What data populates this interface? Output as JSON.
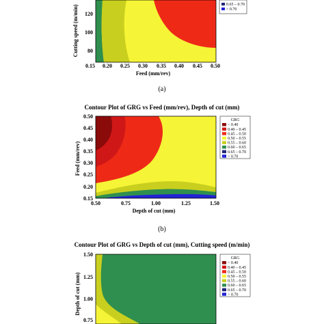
{
  "chart_data": [
    {
      "id": "a",
      "type": "contour",
      "title": "",
      "xlabel": "Feed (mm/rev)",
      "ylabel": "Cutting speed (m/min)",
      "x_ticks": [
        "0.15",
        "0.20",
        "0.25",
        "0.30",
        "0.35",
        "0.40",
        "0.45",
        "0.50"
      ],
      "y_ticks": [
        "120",
        "100",
        "80"
      ],
      "xlim": [
        0.15,
        0.5
      ],
      "ylim": [
        70,
        140
      ],
      "legend_partial": [
        "0.65 – 0.70",
        "> 0.70"
      ],
      "caption": "(a)"
    },
    {
      "id": "b",
      "type": "contour",
      "title": "Contour Plot of GRG vs Feed (mm/rev), Depth of cut (mm)",
      "xlabel": "Depth of cut (mm)",
      "ylabel": "Feed (mm/rev)",
      "x_ticks": [
        "0.50",
        "0.75",
        "1.00",
        "1.25",
        "1.50"
      ],
      "y_ticks": [
        "0.50",
        "0.45",
        "0.40",
        "0.35",
        "0.30",
        "0.25",
        "0.20",
        "0.15"
      ],
      "xlim": [
        0.5,
        1.5
      ],
      "ylim": [
        0.15,
        0.5
      ],
      "legend_title": "GRG",
      "legend": [
        "< 0.40",
        "0.40 – 0.45",
        "0.45 – 0.50",
        "0.50 – 0.55",
        "0.55 – 0.60",
        "0.60 – 0.65",
        "0.65 – 0.70",
        "> 0.70"
      ],
      "caption": "(b)"
    },
    {
      "id": "c",
      "type": "contour",
      "title": "Contour Plot of GRG vs Depth of cut (mm), Cutting speed (m/min)",
      "xlabel": "",
      "ylabel": "Depth of cut (mm)",
      "y_ticks": [
        "1.50",
        "1.25",
        "1.00",
        "0.75"
      ],
      "ylim": [
        0.6,
        1.5
      ],
      "legend_title": "GRG",
      "legend": [
        "< 0.40",
        "0.40 – 0.45",
        "0.45 – 0.50",
        "0.50 – 0.55",
        "0.55 – 0.60",
        "0.60 – 0.65",
        "0.65 – 0.70",
        "> 0.70"
      ]
    }
  ],
  "colors": {
    "lt040": "#8b0a0a",
    "r040_045": "#cf1717",
    "r045_050": "#ee2a17",
    "r050_055": "#f6f436",
    "r055_060": "#c9cf1e",
    "r060_065": "#2f8f4f",
    "r065_070": "#22267a",
    "gt070": "#2222d6"
  }
}
